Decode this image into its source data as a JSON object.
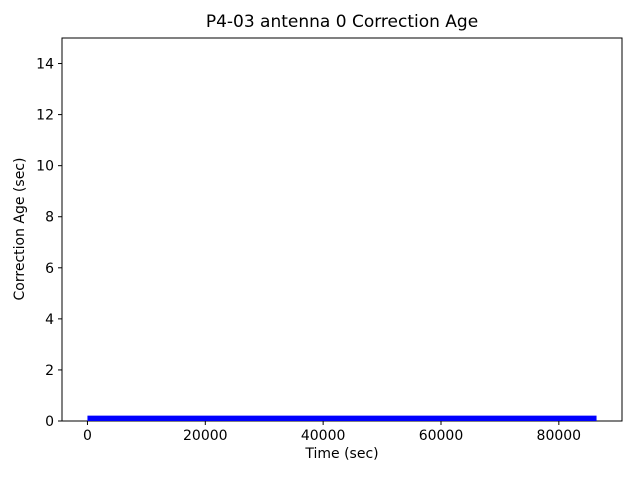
{
  "chart_data": {
    "type": "line",
    "title": "P4-03 antenna 0 Correction Age",
    "xlabel": "Time (sec)",
    "ylabel": "Correction Age (sec)",
    "xlim": [
      -4320,
      90720
    ],
    "ylim": [
      0,
      15
    ],
    "xticks": [
      0,
      20000,
      40000,
      60000,
      80000
    ],
    "yticks": [
      0,
      2,
      4,
      6,
      8,
      10,
      12,
      14
    ],
    "grid": false,
    "legend_position": "none",
    "background_color": "#ffffff",
    "axis_color": "#000000",
    "series": [
      {
        "name": "antenna 0 correction age",
        "color": "#0000ff",
        "x_start": 0,
        "x_end": 86400,
        "y_min": 0.0,
        "y_max": 0.21,
        "y_typical": 0.1,
        "points": [
          [
            0,
            0.1
          ],
          [
            86400,
            0.1
          ]
        ]
      }
    ]
  }
}
